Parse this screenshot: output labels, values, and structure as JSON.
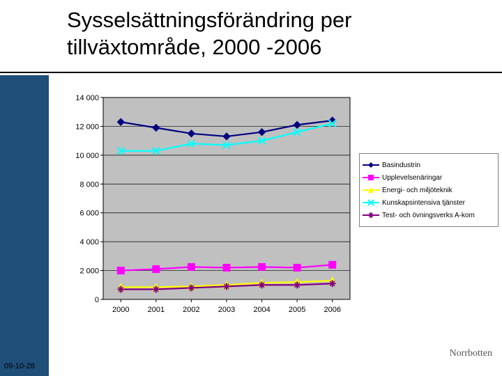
{
  "title": "Sysselsättningsförändring per tillväxtområde, 2000 -2006",
  "footer": {
    "date": "09-10-28",
    "right": "Norrbotten"
  },
  "chart": {
    "type": "line",
    "categories": [
      "2000",
      "2001",
      "2002",
      "2003",
      "2004",
      "2005",
      "2006"
    ],
    "ylim": [
      0,
      14000
    ],
    "ytick_step": 2000,
    "ytick_labels": [
      "0",
      "2 000",
      "4 000",
      "6 000",
      "8 000",
      "10 000",
      "12 000",
      "14 000"
    ],
    "plot_background": "#c0c0c0",
    "grid_color": "#000000",
    "axis_color": "#000000",
    "label_fontsize": 11,
    "series": [
      {
        "name": "Basindustrin",
        "color": "#000080",
        "marker": "diamond",
        "values": [
          12300,
          11900,
          11500,
          11300,
          11600,
          12100,
          12400
        ]
      },
      {
        "name": "Upplevelsenäringar",
        "color": "#ff00ff",
        "marker": "square",
        "values": [
          2000,
          2100,
          2250,
          2200,
          2250,
          2200,
          2400
        ]
      },
      {
        "name": "Energi- och miljöteknik",
        "color": "#ffff00",
        "marker": "triangle",
        "values": [
          850,
          850,
          900,
          1000,
          1150,
          1200,
          1300
        ]
      },
      {
        "name": "Kunskapsintensiva tjänster",
        "color": "#00ffff",
        "marker": "x",
        "values": [
          10300,
          10300,
          10800,
          10700,
          11000,
          11600,
          12200
        ]
      },
      {
        "name": "Test- och övningsverks A-kom",
        "color": "#800080",
        "marker": "star",
        "values": [
          700,
          700,
          800,
          900,
          1000,
          1000,
          1100
        ]
      }
    ]
  }
}
